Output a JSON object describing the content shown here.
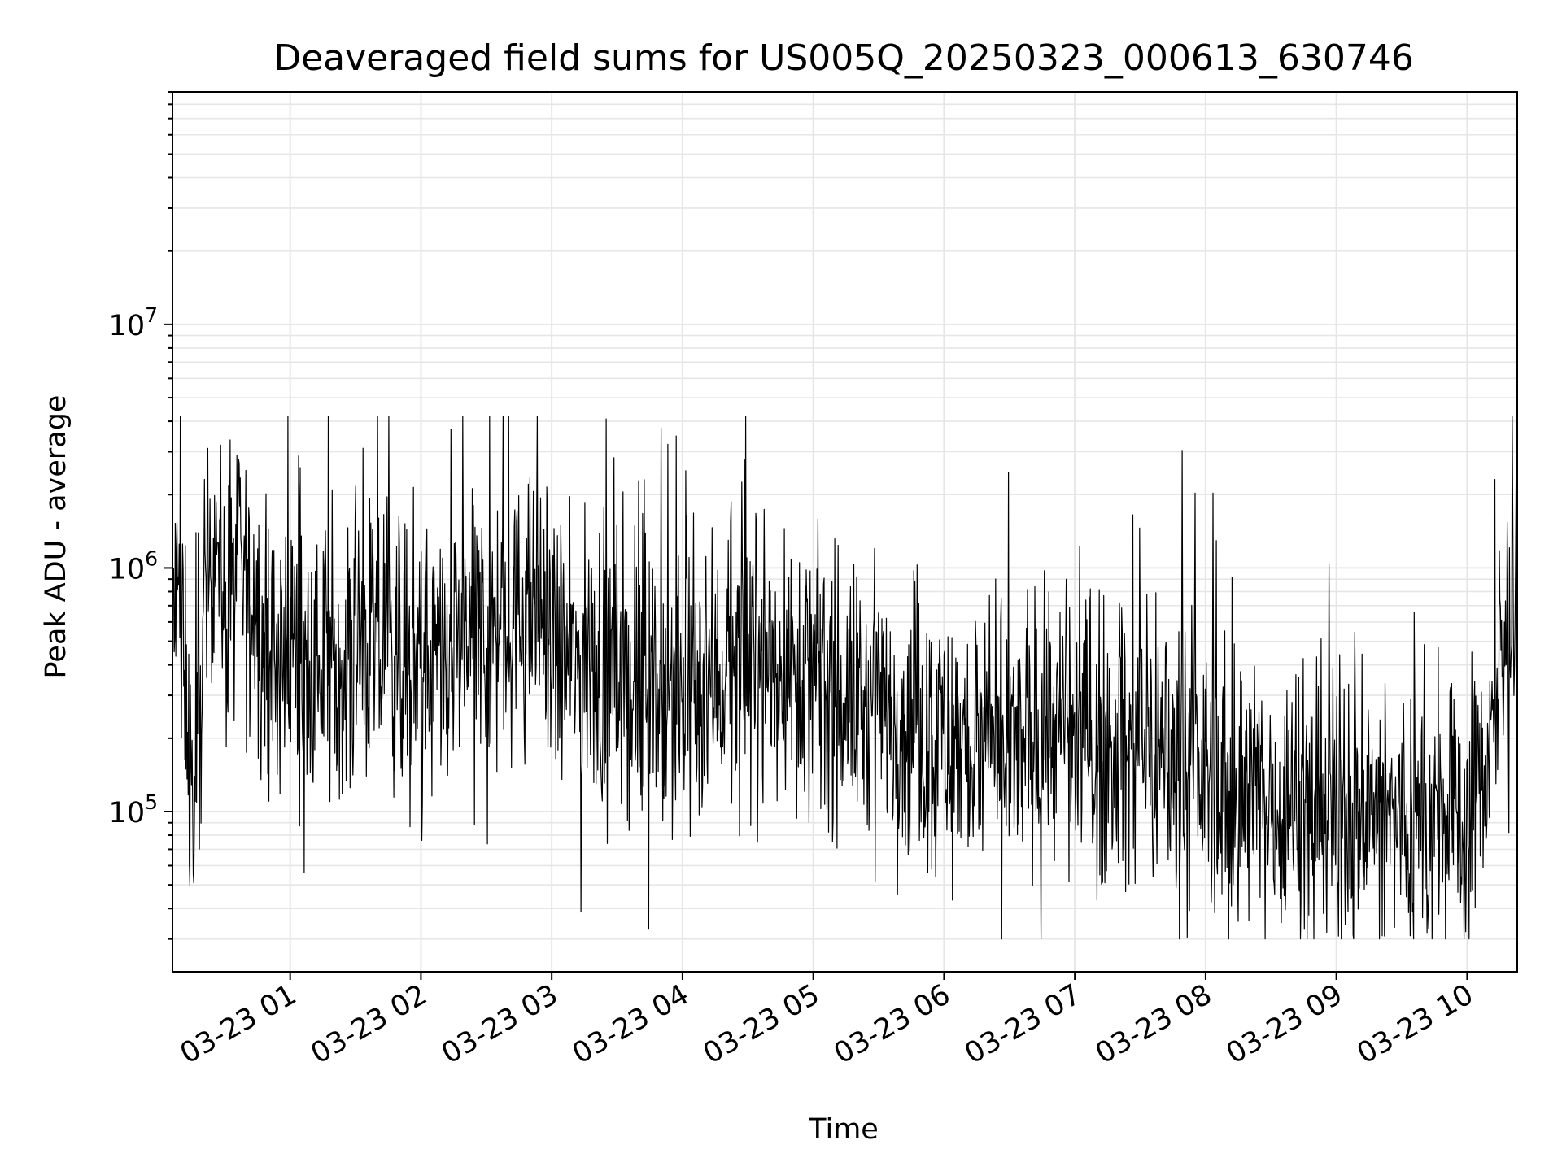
{
  "chart_data": {
    "type": "line",
    "title": "Deaveraged field sums for US005Q_20250323_000613_630746",
    "xlabel": "Time",
    "ylabel": "Peak ADU - average",
    "yscale": "log",
    "xlim": [
      "2025-03-23 00:06",
      "2025-03-23 10:23"
    ],
    "ylim": [
      22000,
      90000000
    ],
    "grid": true,
    "line_color": "#000000",
    "grid_color": "#e6e6e6",
    "x_tick_labels": [
      "03-23 01",
      "03-23 02",
      "03-23 03",
      "03-23 04",
      "03-23 05",
      "03-23 06",
      "03-23 07",
      "03-23 08",
      "03-23 09",
      "03-23 10"
    ],
    "x_tick_times": [
      "2025-03-23 01:00",
      "2025-03-23 02:00",
      "2025-03-23 03:00",
      "2025-03-23 04:00",
      "2025-03-23 05:00",
      "2025-03-23 06:00",
      "2025-03-23 07:00",
      "2025-03-23 08:00",
      "2025-03-23 09:00",
      "2025-03-23 10:00"
    ],
    "y_major_ticks": [
      {
        "value": 100000,
        "base": "10",
        "exp": "5"
      },
      {
        "value": 1000000,
        "base": "10",
        "exp": "6"
      },
      {
        "value": 10000000,
        "base": "10",
        "exp": "7"
      }
    ],
    "series": [
      {
        "x": [
          "2025-03-23 00:06",
          "2025-03-23 00:08",
          "2025-03-23 00:10",
          "2025-03-23 00:12",
          "2025-03-23 00:14",
          "2025-03-23 00:16",
          "2025-03-23 00:18",
          "2025-03-23 00:20",
          "2025-03-23 00:22",
          "2025-03-23 00:24",
          "2025-03-23 00:26",
          "2025-03-23 00:28",
          "2025-03-23 00:30",
          "2025-03-23 00:33",
          "2025-03-23 00:36",
          "2025-03-23 00:40",
          "2025-03-23 00:45",
          "2025-03-23 00:50",
          "2025-03-23 00:55",
          "2025-03-23 01:00",
          "2025-03-23 01:10",
          "2025-03-23 01:20",
          "2025-03-23 01:30",
          "2025-03-23 01:40",
          "2025-03-23 01:50",
          "2025-03-23 02:00",
          "2025-03-23 02:10",
          "2025-03-23 02:15",
          "2025-03-23 02:20",
          "2025-03-23 02:30",
          "2025-03-23 02:40",
          "2025-03-23 02:50",
          "2025-03-23 02:55",
          "2025-03-23 03:00",
          "2025-03-23 03:10",
          "2025-03-23 03:20",
          "2025-03-23 03:30",
          "2025-03-23 03:40",
          "2025-03-23 03:50",
          "2025-03-23 04:00",
          "2025-03-23 04:10",
          "2025-03-23 04:20",
          "2025-03-23 04:30",
          "2025-03-23 04:40",
          "2025-03-23 04:50",
          "2025-03-23 05:00",
          "2025-03-23 05:10",
          "2025-03-23 05:20",
          "2025-03-23 05:30",
          "2025-03-23 05:40",
          "2025-03-23 05:50",
          "2025-03-23 06:00",
          "2025-03-23 06:10",
          "2025-03-23 06:20",
          "2025-03-23 06:30",
          "2025-03-23 06:40",
          "2025-03-23 06:50",
          "2025-03-23 07:00",
          "2025-03-23 07:10",
          "2025-03-23 07:20",
          "2025-03-23 07:30",
          "2025-03-23 07:40",
          "2025-03-23 07:50",
          "2025-03-23 08:00",
          "2025-03-23 08:10",
          "2025-03-23 08:20",
          "2025-03-23 08:30",
          "2025-03-23 08:40",
          "2025-03-23 08:50",
          "2025-03-23 09:00",
          "2025-03-23 09:10",
          "2025-03-23 09:20",
          "2025-03-23 09:30",
          "2025-03-23 09:40",
          "2025-03-23 09:50",
          "2025-03-23 10:00",
          "2025-03-23 10:05",
          "2025-03-23 10:10",
          "2025-03-23 10:15",
          "2025-03-23 10:20",
          "2025-03-23 10:23"
        ],
        "level": [
          600000,
          700000,
          500000,
          400000,
          150000,
          80000,
          200000,
          500000,
          800000,
          1200000,
          1800000,
          1000000,
          600000,
          700000,
          1000000,
          800000,
          600000,
          500000,
          400000,
          550000,
          350000,
          450000,
          450000,
          450000,
          450000,
          400000,
          350000,
          450000,
          500000,
          550000,
          600000,
          650000,
          700000,
          450000,
          400000,
          400000,
          350000,
          300000,
          320000,
          280000,
          350000,
          380000,
          400000,
          420000,
          400000,
          350000,
          300000,
          280000,
          250000,
          240000,
          220000,
          200000,
          180000,
          170000,
          160000,
          200000,
          220000,
          200000,
          170000,
          180000,
          180000,
          170000,
          160000,
          140000,
          120000,
          110000,
          110000,
          110000,
          110000,
          100000,
          100000,
          95000,
          90000,
          90000,
          90000,
          90000,
          120000,
          200000,
          300000,
          700000,
          800000
        ],
        "min": 30000,
        "max": 4200000
      }
    ]
  }
}
